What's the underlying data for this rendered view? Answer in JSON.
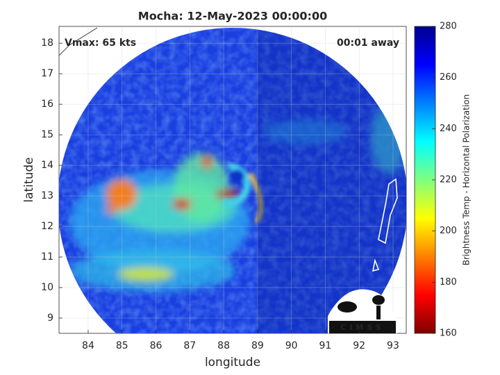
{
  "chart_data": {
    "type": "image",
    "title": "Mocha: 12-May-2023 00:00:00",
    "xlabel": "longitude",
    "ylabel": "latitude",
    "annotations": [
      "Vmax: 65 kts",
      "00:01 away"
    ],
    "xlim": [
      83.14,
      93.39
    ],
    "ylim": [
      8.5,
      18.55
    ],
    "xticks": [
      84,
      85,
      86,
      87,
      88,
      89,
      90,
      91,
      92,
      93
    ],
    "yticks": [
      9,
      10,
      11,
      12,
      13,
      14,
      15,
      16,
      17,
      18
    ],
    "grid": true,
    "colorbar": {
      "label": "Brightness Temp - Horizontal Polarization",
      "lim": [
        160,
        280
      ],
      "ticks": [
        160,
        180,
        200,
        220,
        240,
        260,
        280
      ],
      "colormap": "jet"
    },
    "logo": "CIMSS"
  }
}
